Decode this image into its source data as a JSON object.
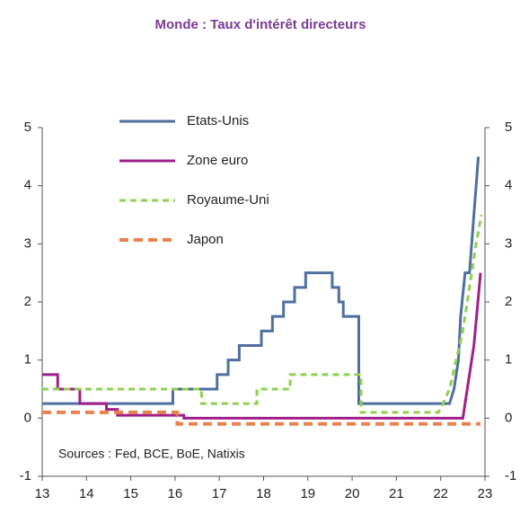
{
  "chart_data": {
    "type": "line",
    "title": "Monde : Taux d'intérêt directeurs",
    "annotation": "Sources : Fed, BCE, BoE, Natixis",
    "xlim": [
      13,
      23
    ],
    "xticks": [
      13,
      14,
      15,
      16,
      17,
      18,
      19,
      20,
      21,
      22,
      23
    ],
    "ylim": [
      -1,
      5
    ],
    "yticks": [
      -1,
      0,
      1,
      2,
      3,
      4,
      5
    ],
    "y2lim": [
      -1,
      5
    ],
    "y2ticks": [
      -1,
      0,
      1,
      2,
      3,
      4,
      5
    ],
    "legend": "upper left",
    "series": [
      {
        "name": "Etats-Unis",
        "color": "#4f6f9f",
        "dashed": false,
        "x": [
          13,
          15.95,
          15.95,
          16.95,
          16.95,
          17.2,
          17.2,
          17.45,
          17.45,
          17.95,
          17.95,
          18.2,
          18.2,
          18.45,
          18.45,
          18.7,
          18.7,
          18.95,
          18.95,
          19.55,
          19.55,
          19.7,
          19.7,
          19.8,
          19.8,
          20.15,
          20.15,
          22.2,
          22.3,
          22.4,
          22.45,
          22.55,
          22.65,
          22.85
        ],
        "values": [
          0.25,
          0.25,
          0.5,
          0.5,
          0.75,
          0.75,
          1.0,
          1.0,
          1.25,
          1.25,
          1.5,
          1.5,
          1.75,
          1.75,
          2.0,
          2.0,
          2.25,
          2.25,
          2.5,
          2.5,
          2.25,
          2.25,
          2.0,
          2.0,
          1.75,
          1.75,
          0.25,
          0.25,
          0.5,
          1.0,
          1.75,
          2.5,
          2.5,
          4.5
        ]
      },
      {
        "name": "Zone euro",
        "color": "#a0208a",
        "dashed": false,
        "x": [
          13,
          13.35,
          13.35,
          13.85,
          13.85,
          14.45,
          14.45,
          14.7,
          14.7,
          16.2,
          16.2,
          22.5,
          22.6,
          22.75,
          22.9
        ],
        "values": [
          0.75,
          0.75,
          0.5,
          0.5,
          0.25,
          0.25,
          0.15,
          0.15,
          0.05,
          0.05,
          0,
          0,
          0.5,
          1.25,
          2.5
        ]
      },
      {
        "name": "Royaume-Uni",
        "color": "#8fd14f",
        "dashed": true,
        "x": [
          13,
          16.6,
          16.6,
          17.85,
          17.85,
          18.6,
          18.6,
          20.2,
          20.2,
          21.95,
          22.05,
          22.2,
          22.35,
          22.5,
          22.65,
          22.8,
          22.92
        ],
        "values": [
          0.5,
          0.5,
          0.25,
          0.25,
          0.5,
          0.5,
          0.75,
          0.75,
          0.1,
          0.1,
          0.25,
          0.5,
          1.0,
          1.5,
          2.25,
          3.0,
          3.5
        ]
      },
      {
        "name": "Japon",
        "color": "#e8834f",
        "dashed": true,
        "x": [
          13,
          16.05,
          16.05,
          22.9
        ],
        "values": [
          0.1,
          0.1,
          -0.1,
          -0.1
        ]
      }
    ]
  }
}
